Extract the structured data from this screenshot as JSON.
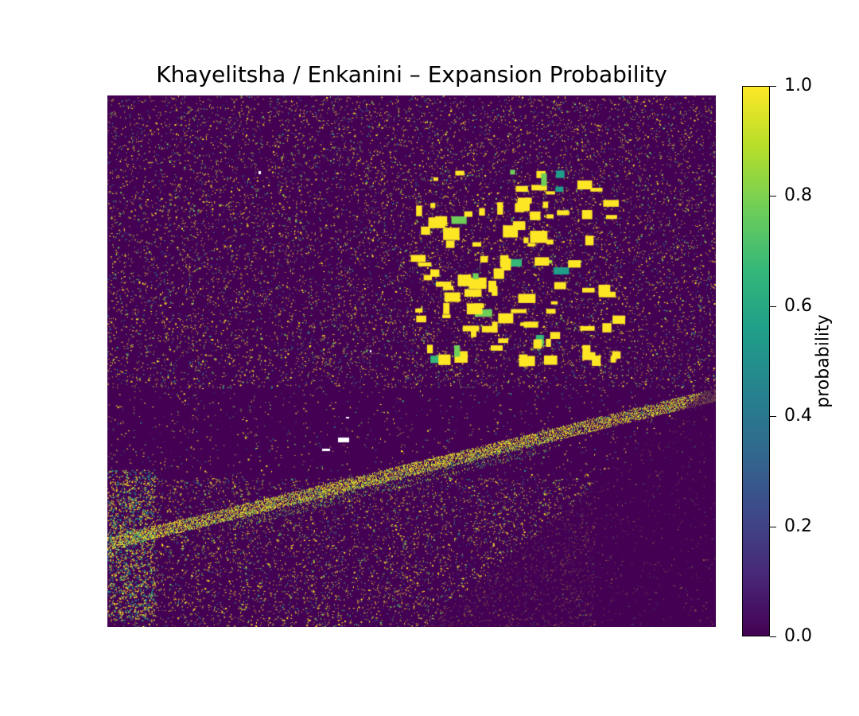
{
  "map": {
    "title": "Khayelitsha / Enkanini – Expansion Probability",
    "colormap": "viridis",
    "colormap_stops": [
      "#440154",
      "#482878",
      "#3e4989",
      "#31688e",
      "#26828e",
      "#1f9e89",
      "#35b779",
      "#6ece58",
      "#b5de2b",
      "#fde725"
    ],
    "background_value_color": "#440154",
    "nodata_color": "#ffffff"
  },
  "colorbar": {
    "label": "probability",
    "range": [
      0.0,
      1.0
    ],
    "ticks": [
      "0.0",
      "0.2",
      "0.4",
      "0.6",
      "0.8",
      "1.0"
    ]
  }
}
